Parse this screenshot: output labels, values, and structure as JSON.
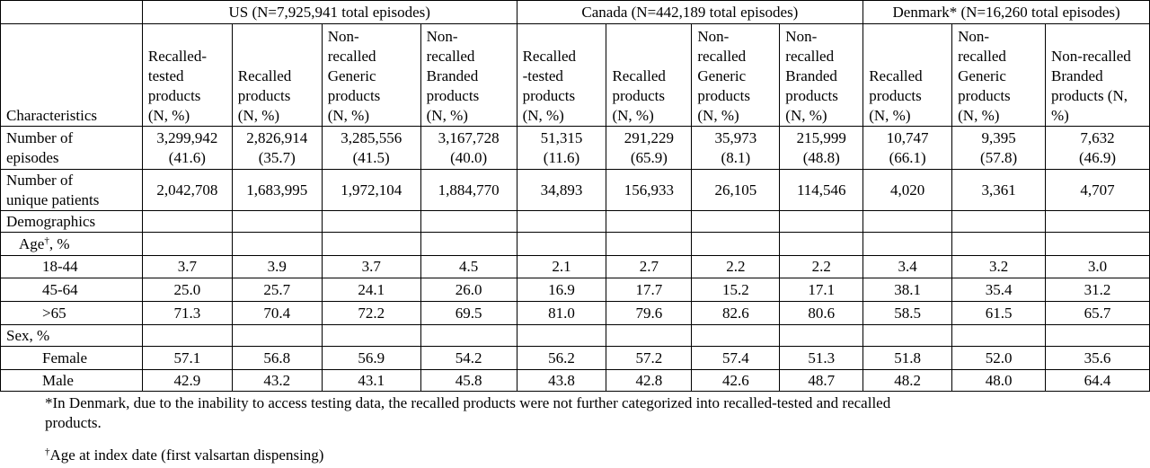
{
  "groups": [
    {
      "label": "US (N=7,925,941 total episodes)"
    },
    {
      "label": "Canada (N=442,189 total episodes)"
    },
    {
      "label": "Denmark* (N=16,260 total episodes)"
    }
  ],
  "columns": [
    "Recalled-\ntested\nproducts\n(N, %)",
    "Recalled\nproducts\n(N, %)",
    "Non-\nrecalled\nGeneric\nproducts\n(N, %)",
    "Non-\nrecalled\nBranded\nproducts\n(N, %)",
    "Recalled\n-tested\nproducts\n(N, %)",
    "Recalled\nproducts\n(N, %)",
    "Non-\nrecalled\nGeneric\nproducts\n(N, %)",
    "Non-\nrecalled\nBranded\nproducts\n(N, %)",
    "Recalled\nproducts\n(N, %)",
    "Non-\nrecalled\nGeneric\nproducts\n(N, %)",
    "Non-recalled\nBranded\nproducts  (N,\n%)"
  ],
  "characteristics_label": "Characteristics",
  "rows": [
    {
      "label": "Number of\nepisodes",
      "indent": 0,
      "values": [
        "3,299,942\n(41.6)",
        "2,826,914\n(35.7)",
        "3,285,556\n(41.5)",
        "3,167,728\n(40.0)",
        "51,315\n(11.6)",
        "291,229\n(65.9)",
        "35,973\n(8.1)",
        "215,999\n(48.8)",
        "10,747\n(66.1)",
        "9,395\n(57.8)",
        "7,632\n(46.9)"
      ]
    },
    {
      "label": "Number of\nunique patients",
      "indent": 0,
      "values": [
        "2,042,708",
        "1,683,995",
        "1,972,104",
        "1,884,770",
        "34,893",
        "156,933",
        "26,105",
        "114,546",
        "4,020",
        "3,361",
        "4,707"
      ]
    },
    {
      "label": "Demographics",
      "indent": 0,
      "values": [
        "",
        "",
        "",
        "",
        "",
        "",
        "",
        "",
        "",
        "",
        ""
      ]
    },
    {
      "label": "Age",
      "sup": "†",
      "suffix": ", %",
      "indent": 1,
      "values": [
        "",
        "",
        "",
        "",
        "",
        "",
        "",
        "",
        "",
        "",
        ""
      ]
    },
    {
      "label": "18-44",
      "indent": 2,
      "values": [
        "3.7",
        "3.9",
        "3.7",
        "4.5",
        "2.1",
        "2.7",
        "2.2",
        "2.2",
        "3.4",
        "3.2",
        "3.0"
      ]
    },
    {
      "label": "45-64",
      "indent": 2,
      "values": [
        "25.0",
        "25.7",
        "24.1",
        "26.0",
        "16.9",
        "17.7",
        "15.2",
        "17.1",
        "38.1",
        "35.4",
        "31.2"
      ]
    },
    {
      "label": ">65",
      "indent": 2,
      "values": [
        "71.3",
        "70.4",
        "72.2",
        "69.5",
        "81.0",
        "79.6",
        "82.6",
        "80.6",
        "58.5",
        "61.5",
        "65.7"
      ]
    },
    {
      "label": "Sex, %",
      "indent": 0,
      "values": [
        "",
        "",
        "",
        "",
        "",
        "",
        "",
        "",
        "",
        "",
        ""
      ]
    },
    {
      "label": "Female",
      "indent": 2,
      "values": [
        "57.1",
        "56.8",
        "56.9",
        "54.2",
        "56.2",
        "57.2",
        "57.4",
        "51.3",
        "51.8",
        "52.0",
        "35.6"
      ]
    },
    {
      "label": "Male",
      "indent": 2,
      "values": [
        "42.9",
        "43.2",
        "43.1",
        "45.8",
        "43.8",
        "42.8",
        "42.6",
        "48.7",
        "48.2",
        "48.0",
        "64.4"
      ]
    }
  ],
  "footnotes": {
    "denmark": "*In Denmark, due to the inability to access testing data, the recalled products were not further categorized into recalled-tested and recalled\nproducts.",
    "age_sup": "†",
    "age": "Age at index date (first valsartan dispensing)"
  }
}
